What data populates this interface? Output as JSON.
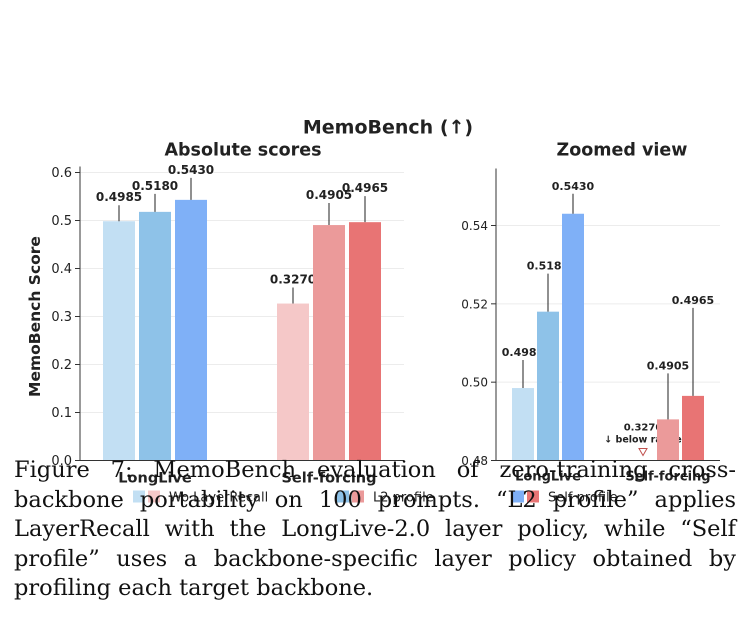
{
  "chart_data": {
    "type": "bar",
    "suptitle": "MemoBench (↑)",
    "categories": [
      "LongLive",
      "Self-forcing"
    ],
    "series_labels": [
      "Wo LayerRecall",
      "L2 profile",
      "Self profile"
    ],
    "values": {
      "LongLive": [
        0.4985,
        0.518,
        0.543
      ],
      "Self-forcing": [
        0.327,
        0.4905,
        0.4965
      ]
    },
    "colors": {
      "LongLive": [
        "#c2dff3",
        "#8ec2e8",
        "#7fb0f7"
      ],
      "Self-forcing": [
        "#f5c8c8",
        "#eb9a9a",
        "#e87474"
      ]
    },
    "panels": [
      {
        "title": "Absolute scores",
        "ylabel": "MemoBench Score",
        "ylim": [
          0,
          0.6
        ],
        "yticks": [
          0.0,
          0.1,
          0.2,
          0.3,
          0.4,
          0.5,
          0.6
        ],
        "ytick_labels": [
          "0.0",
          "0.1",
          "0.2",
          "0.3",
          "0.4",
          "0.5",
          "0.6"
        ]
      },
      {
        "title": "Zoomed view",
        "ylim": [
          0.48,
          0.552
        ],
        "yticks": [
          0.48,
          0.5,
          0.52,
          0.54
        ],
        "ytick_labels": [
          "0.48",
          "0.50",
          "0.52",
          "0.54"
        ],
        "below_range_note": "↓ below range"
      }
    ]
  },
  "caption": "Figure 7: MemoBench evaluation of zero-training cross-backbone portability on 100 prompts. “L2 profile” applies LayerRecall with the LongLive-2.0 layer policy, while “Self profile” uses a backbone-specific layer policy obtained by profiling each target backbone."
}
